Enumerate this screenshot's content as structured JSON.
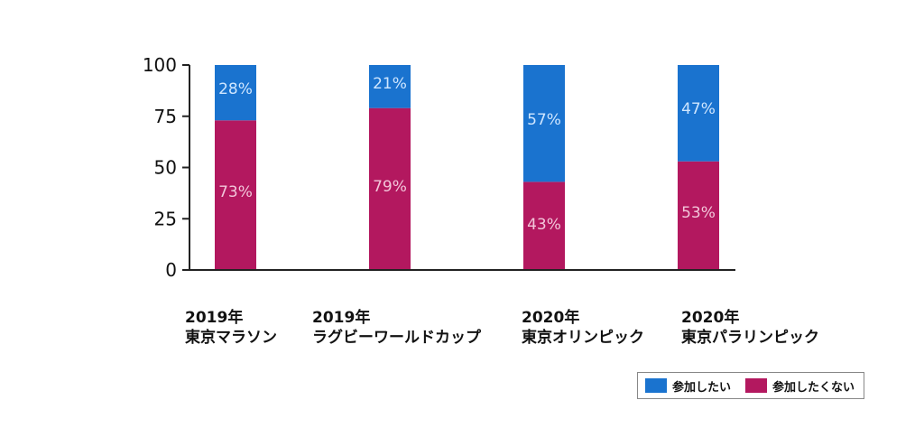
{
  "chart_data": {
    "type": "bar",
    "stacked": true,
    "categories": [
      [
        "2019年",
        "東京マラソン"
      ],
      [
        "2019年",
        "ラグビーワールドカップ"
      ],
      [
        "2020年",
        "東京オリンピック"
      ],
      [
        "2020年",
        "東京パラリンピック"
      ]
    ],
    "series": [
      {
        "name": "参加したくない",
        "color": "#b3185f",
        "values": [
          73,
          79,
          43,
          53
        ],
        "labels": [
          "73%",
          "79%",
          "43%",
          "53%"
        ]
      },
      {
        "name": "参加したい",
        "color": "#1a73cf",
        "values": [
          28,
          21,
          57,
          47
        ],
        "labels": [
          "28%",
          "21%",
          "57%",
          "47%"
        ]
      }
    ],
    "yticks": [
      "0",
      "25",
      "50",
      "75",
      "100"
    ],
    "ylim": [
      0,
      100
    ],
    "grid": false,
    "legend": {
      "position": "bottom-right",
      "items": [
        {
          "label": "参加したい",
          "color": "#1a73cf"
        },
        {
          "label": "参加したくない",
          "color": "#b3185f"
        }
      ]
    }
  }
}
